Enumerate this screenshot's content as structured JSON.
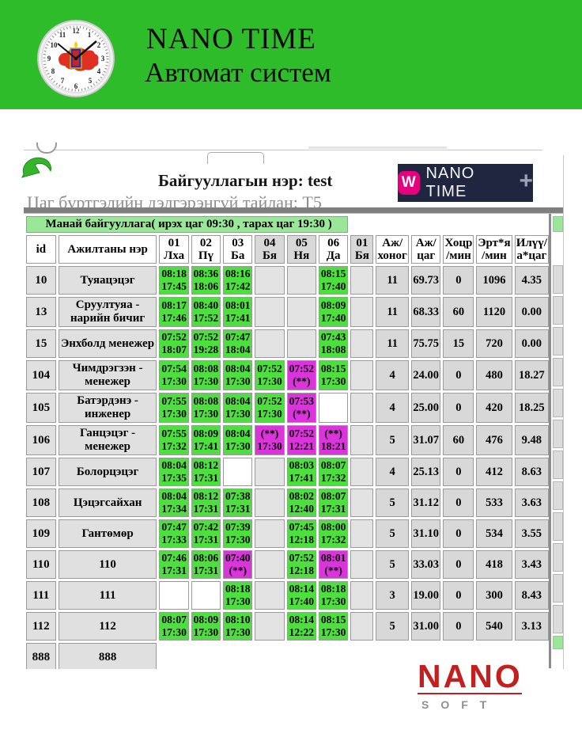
{
  "header": {
    "title": "NANO TIME",
    "subtitle": "Автомат систем"
  },
  "info": {
    "org": "Байгууллагын нэр: test",
    "report": "Цаг бүртгэлийн дэлгэрэнгүй тайлан: Т5"
  },
  "brand_button": {
    "logo_letter": "W",
    "label": "NANO TIME",
    "plus": "+"
  },
  "report_table": {
    "banner": "Манай байгууллага( ирэх цаг 09:30 , тарах цаг 19:30 )",
    "header": {
      "id": "id",
      "name": "Ажилтаны нэр",
      "days": [
        {
          "label": "01 Лха",
          "weekend": false
        },
        {
          "label": "02 Пү",
          "weekend": false
        },
        {
          "label": "03 Ба",
          "weekend": false
        },
        {
          "label": "04 Бя",
          "weekend": true
        },
        {
          "label": "05 Ня",
          "weekend": true
        },
        {
          "label": "06 Да",
          "weekend": false
        },
        {
          "label": "01 Бя",
          "weekend": true
        }
      ],
      "sums": [
        {
          "top": "Аж/",
          "bottom": "хоног"
        },
        {
          "top": "Аж/",
          "bottom": "цаг"
        },
        {
          "top": "Хоцр",
          "bottom": "/мин"
        },
        {
          "top": "Эрт*я",
          "bottom": "/мин"
        },
        {
          "top": "Илүү/",
          "bottom": "а*цаг"
        }
      ]
    },
    "rows": [
      {
        "id": "10",
        "name": "Туяацэцэг",
        "days": [
          {
            "in": "08:18",
            "out": "17:45",
            "t": "g"
          },
          {
            "in": "08:36",
            "out": "18:06",
            "t": "g"
          },
          {
            "in": "08:16",
            "out": "17:42",
            "t": "g"
          },
          {
            "t": "e"
          },
          {
            "t": "e"
          },
          {
            "in": "08:15",
            "out": "17:40",
            "t": "g"
          },
          {
            "t": "e"
          }
        ],
        "sums": [
          "11",
          "69.73",
          "0",
          "1096",
          "4.35"
        ]
      },
      {
        "id": "13",
        "name": "Сруултуяа - нарийн бичиг",
        "days": [
          {
            "in": "08:17",
            "out": "17:46",
            "t": "g"
          },
          {
            "in": "08:40",
            "out": "17:52",
            "t": "g"
          },
          {
            "in": "08:01",
            "out": "17:41",
            "t": "g"
          },
          {
            "t": "e"
          },
          {
            "t": "e"
          },
          {
            "in": "08:09",
            "out": "17:40",
            "t": "g"
          },
          {
            "t": "e"
          }
        ],
        "sums": [
          "11",
          "68.33",
          "60",
          "1120",
          "0.00"
        ]
      },
      {
        "id": "15",
        "name": "Энхболд менежер",
        "days": [
          {
            "in": "07:52",
            "out": "18:07",
            "t": "g"
          },
          {
            "in": "07:52",
            "out": "19:28",
            "t": "g"
          },
          {
            "in": "07:47",
            "out": "18:04",
            "t": "g"
          },
          {
            "t": "e"
          },
          {
            "t": "e"
          },
          {
            "in": "07:43",
            "out": "18:08",
            "t": "g"
          },
          {
            "t": "e"
          }
        ],
        "sums": [
          "11",
          "75.75",
          "15",
          "720",
          "0.00"
        ]
      },
      {
        "id": "104",
        "name": "Чимдрэгзэн - менежер",
        "days": [
          {
            "in": "07:54",
            "out": "17:30",
            "t": "g"
          },
          {
            "in": "08:08",
            "out": "17:30",
            "t": "g"
          },
          {
            "in": "08:04",
            "out": "17:30",
            "t": "g"
          },
          {
            "in": "07:52",
            "out": "17:30",
            "t": "g"
          },
          {
            "in": "07:52",
            "out": "(**)",
            "t": "m"
          },
          {
            "in": "08:15",
            "out": "17:30",
            "t": "g"
          },
          {
            "t": "e"
          }
        ],
        "sums": [
          "4",
          "24.00",
          "0",
          "480",
          "18.27"
        ]
      },
      {
        "id": "105",
        "name": "Батэрдэнэ - инженер",
        "days": [
          {
            "in": "07:55",
            "out": "17:30",
            "t": "g"
          },
          {
            "in": "08:08",
            "out": "17:30",
            "t": "g"
          },
          {
            "in": "08:04",
            "out": "17:30",
            "t": "g"
          },
          {
            "in": "07:52",
            "out": "17:30",
            "t": "g"
          },
          {
            "in": "07:53",
            "out": "(**)",
            "t": "m"
          },
          {
            "t": "w"
          },
          {
            "t": "e"
          }
        ],
        "sums": [
          "4",
          "25.00",
          "0",
          "420",
          "18.25"
        ]
      },
      {
        "id": "106",
        "name": "Ганцэцэг - менежер",
        "days": [
          {
            "in": "07:55",
            "out": "17:32",
            "t": "g"
          },
          {
            "in": "08:09",
            "out": "17:41",
            "t": "g"
          },
          {
            "in": "08:04",
            "out": "17:30",
            "t": "g"
          },
          {
            "in": "(**)",
            "out": "17:30",
            "t": "m"
          },
          {
            "in": "07:52",
            "out": "12:21",
            "t": "m"
          },
          {
            "in": "(**)",
            "out": "18:21",
            "t": "m"
          },
          {
            "t": "e"
          }
        ],
        "sums": [
          "5",
          "31.07",
          "60",
          "476",
          "9.48"
        ]
      },
      {
        "id": "107",
        "name": "Болорцэцэг",
        "days": [
          {
            "in": "08:04",
            "out": "17:35",
            "t": "g"
          },
          {
            "in": "08:12",
            "out": "17:31",
            "t": "g"
          },
          {
            "t": "w"
          },
          {
            "t": "e"
          },
          {
            "in": "08:03",
            "out": "17:41",
            "t": "g"
          },
          {
            "in": "08:07",
            "out": "17:32",
            "t": "g"
          },
          {
            "t": "e"
          }
        ],
        "sums": [
          "4",
          "25.13",
          "0",
          "412",
          "8.63"
        ]
      },
      {
        "id": "108",
        "name": "Цэцэгсайхан",
        "days": [
          {
            "in": "08:04",
            "out": "17:34",
            "t": "g"
          },
          {
            "in": "08:12",
            "out": "17:31",
            "t": "g"
          },
          {
            "in": "07:38",
            "out": "17:31",
            "t": "g"
          },
          {
            "t": "e"
          },
          {
            "in": "08:02",
            "out": "12:40",
            "t": "g"
          },
          {
            "in": "08:07",
            "out": "17:31",
            "t": "g"
          },
          {
            "t": "e"
          }
        ],
        "sums": [
          "5",
          "31.12",
          "0",
          "533",
          "3.63"
        ]
      },
      {
        "id": "109",
        "name": "Гантөмөр",
        "days": [
          {
            "in": "07:47",
            "out": "17:33",
            "t": "g"
          },
          {
            "in": "07:42",
            "out": "17:31",
            "t": "g"
          },
          {
            "in": "07:39",
            "out": "17:30",
            "t": "g"
          },
          {
            "t": "e"
          },
          {
            "in": "07:45",
            "out": "12:18",
            "t": "g"
          },
          {
            "in": "08:00",
            "out": "17:32",
            "t": "g"
          },
          {
            "t": "e"
          }
        ],
        "sums": [
          "5",
          "31.10",
          "0",
          "534",
          "3.55"
        ]
      },
      {
        "id": "110",
        "name": "110",
        "days": [
          {
            "in": "07:46",
            "out": "17:31",
            "t": "g"
          },
          {
            "in": "08:06",
            "out": "17:31",
            "t": "g"
          },
          {
            "in": "07:40",
            "out": "(**)",
            "t": "m"
          },
          {
            "t": "e"
          },
          {
            "in": "07:52",
            "out": "12:18",
            "t": "g"
          },
          {
            "in": "08:01",
            "out": "(**)",
            "t": "m"
          },
          {
            "t": "e"
          }
        ],
        "sums": [
          "5",
          "33.03",
          "0",
          "418",
          "3.43"
        ]
      },
      {
        "id": "111",
        "name": "111",
        "days": [
          {
            "t": "w"
          },
          {
            "t": "w"
          },
          {
            "in": "08:18",
            "out": "17:30",
            "t": "g"
          },
          {
            "t": "e"
          },
          {
            "in": "08:14",
            "out": "17:40",
            "t": "g"
          },
          {
            "in": "08:18",
            "out": "17:30",
            "t": "g"
          },
          {
            "t": "e"
          }
        ],
        "sums": [
          "3",
          "19.00",
          "0",
          "300",
          "8.43"
        ]
      },
      {
        "id": "112",
        "name": "112",
        "days": [
          {
            "in": "08:07",
            "out": "17:30",
            "t": "g"
          },
          {
            "in": "08:09",
            "out": "17:30",
            "t": "g"
          },
          {
            "in": "08:10",
            "out": "17:30",
            "t": "g"
          },
          {
            "t": "e"
          },
          {
            "in": "08:14",
            "out": "12:22",
            "t": "g"
          },
          {
            "in": "08:15",
            "out": "17:30",
            "t": "g"
          },
          {
            "t": "e"
          }
        ],
        "sums": [
          "5",
          "31.00",
          "0",
          "540",
          "3.13"
        ]
      }
    ],
    "footer_row": {
      "id": "888",
      "name": "888"
    }
  },
  "footer_logo": {
    "top": "NANO",
    "bottom": "SOFT"
  },
  "colors": {
    "band_green": "#2ebc2a",
    "banner_green": "#9ae79a",
    "cell_green": "#4ddf3d",
    "cell_magenta": "#dc33dc",
    "button_navy": "#212640",
    "logo_pink": "#e6007e",
    "nanosoft_red": "#c41f1f"
  }
}
